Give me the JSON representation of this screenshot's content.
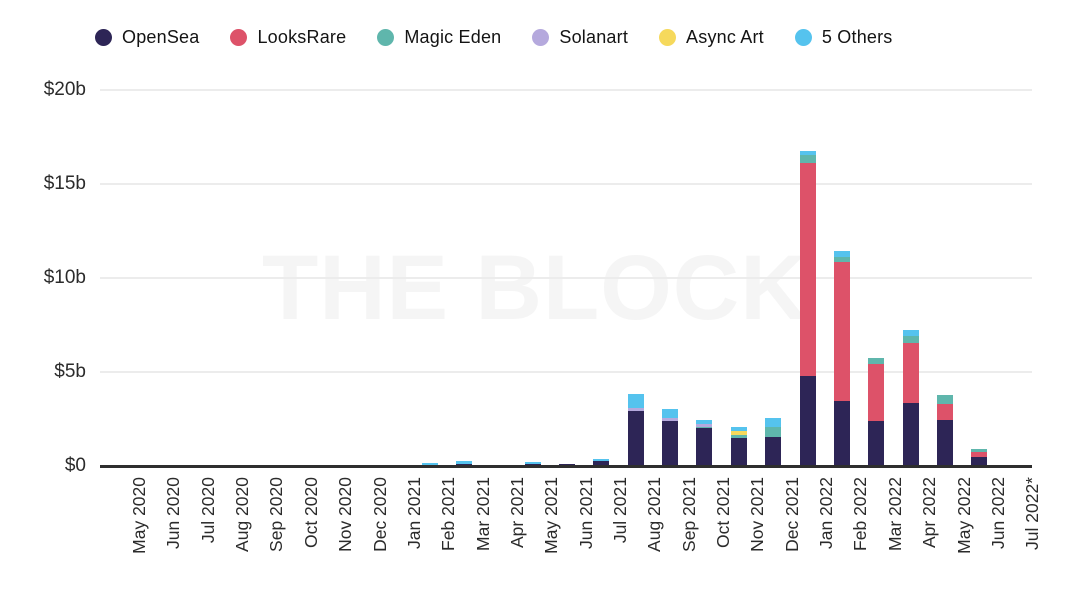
{
  "watermark": "THE BLOCK",
  "legend": {
    "items": [
      {
        "label": "OpenSea",
        "color": "#2d2556"
      },
      {
        "label": "LooksRare",
        "color": "#dd5269"
      },
      {
        "label": "Magic Eden",
        "color": "#5fb6ac"
      },
      {
        "label": "Solanart",
        "color": "#b5a9dd"
      },
      {
        "label": "Async Art",
        "color": "#f6d95c"
      },
      {
        "label": "5 Others",
        "color": "#55c3ee"
      }
    ]
  },
  "chart_data": {
    "type": "bar",
    "stacked": true,
    "unit": "USD billions",
    "title": "",
    "xlabel": "",
    "ylabel": "",
    "ylim": [
      0,
      20
    ],
    "grid": true,
    "legend_position": "top",
    "categories": [
      "May 2020",
      "Jun 2020",
      "Jul 2020",
      "Aug 2020",
      "Sep 2020",
      "Oct 2020",
      "Nov 2020",
      "Dec 2020",
      "Jan 2021",
      "Feb 2021",
      "Mar 2021",
      "Apr 2021",
      "May 2021",
      "Jun 2021",
      "Jul 2021",
      "Aug 2021",
      "Sep 2021",
      "Oct 2021",
      "Nov 2021",
      "Dec 2021",
      "Jan 2022",
      "Feb 2022",
      "Mar 2022",
      "Apr 2022",
      "May 2022",
      "Jun 2022",
      "Jul 2022*"
    ],
    "y_ticks": [
      {
        "label": "$0",
        "value": 0
      },
      {
        "label": "$5b",
        "value": 5
      },
      {
        "label": "$10b",
        "value": 10
      },
      {
        "label": "$15b",
        "value": 15
      },
      {
        "label": "$20b",
        "value": 20
      }
    ],
    "series": [
      {
        "name": "OpenSea",
        "color": "#2d2556",
        "values": [
          0,
          0,
          0,
          0,
          0,
          0,
          0,
          0,
          0.02,
          0.05,
          0.1,
          0.02,
          0.1,
          0.1,
          0.25,
          2.9,
          2.4,
          2.0,
          1.5,
          1.55,
          4.8,
          3.45,
          2.4,
          3.35,
          2.45,
          0.5,
          0
        ]
      },
      {
        "name": "LooksRare",
        "color": "#dd5269",
        "values": [
          0,
          0,
          0,
          0,
          0,
          0,
          0,
          0,
          0,
          0,
          0,
          0,
          0,
          0,
          0,
          0,
          0,
          0,
          0,
          0,
          11.3,
          7.4,
          3.0,
          3.2,
          0.85,
          0.27,
          0
        ]
      },
      {
        "name": "Magic Eden",
        "color": "#5fb6ac",
        "values": [
          0,
          0,
          0,
          0,
          0,
          0,
          0,
          0,
          0,
          0,
          0,
          0,
          0,
          0,
          0,
          0,
          0,
          0.1,
          0.15,
          0.5,
          0.45,
          0.27,
          0.37,
          0.37,
          0.5,
          0.15,
          0
        ]
      },
      {
        "name": "Solanart",
        "color": "#b5a9dd",
        "values": [
          0,
          0,
          0,
          0,
          0,
          0,
          0,
          0,
          0,
          0,
          0,
          0,
          0,
          0,
          0,
          0.16,
          0.16,
          0.15,
          0,
          0,
          0,
          0,
          0,
          0,
          0,
          0,
          0
        ]
      },
      {
        "name": "Async Art",
        "color": "#f6d95c",
        "values": [
          0,
          0,
          0,
          0,
          0,
          0,
          0,
          0,
          0,
          0,
          0,
          0,
          0,
          0,
          0,
          0,
          0,
          0,
          0.2,
          0,
          0,
          0,
          0,
          0,
          0,
          0,
          0
        ]
      },
      {
        "name": "5 Others",
        "color": "#55c3ee",
        "values": [
          0,
          0,
          0,
          0,
          0,
          0,
          0,
          0,
          0,
          0.1,
          0.15,
          0.05,
          0.1,
          0,
          0.1,
          0.75,
          0.45,
          0.2,
          0.2,
          0.5,
          0.2,
          0.3,
          0,
          0.3,
          0,
          0,
          0
        ]
      }
    ]
  }
}
